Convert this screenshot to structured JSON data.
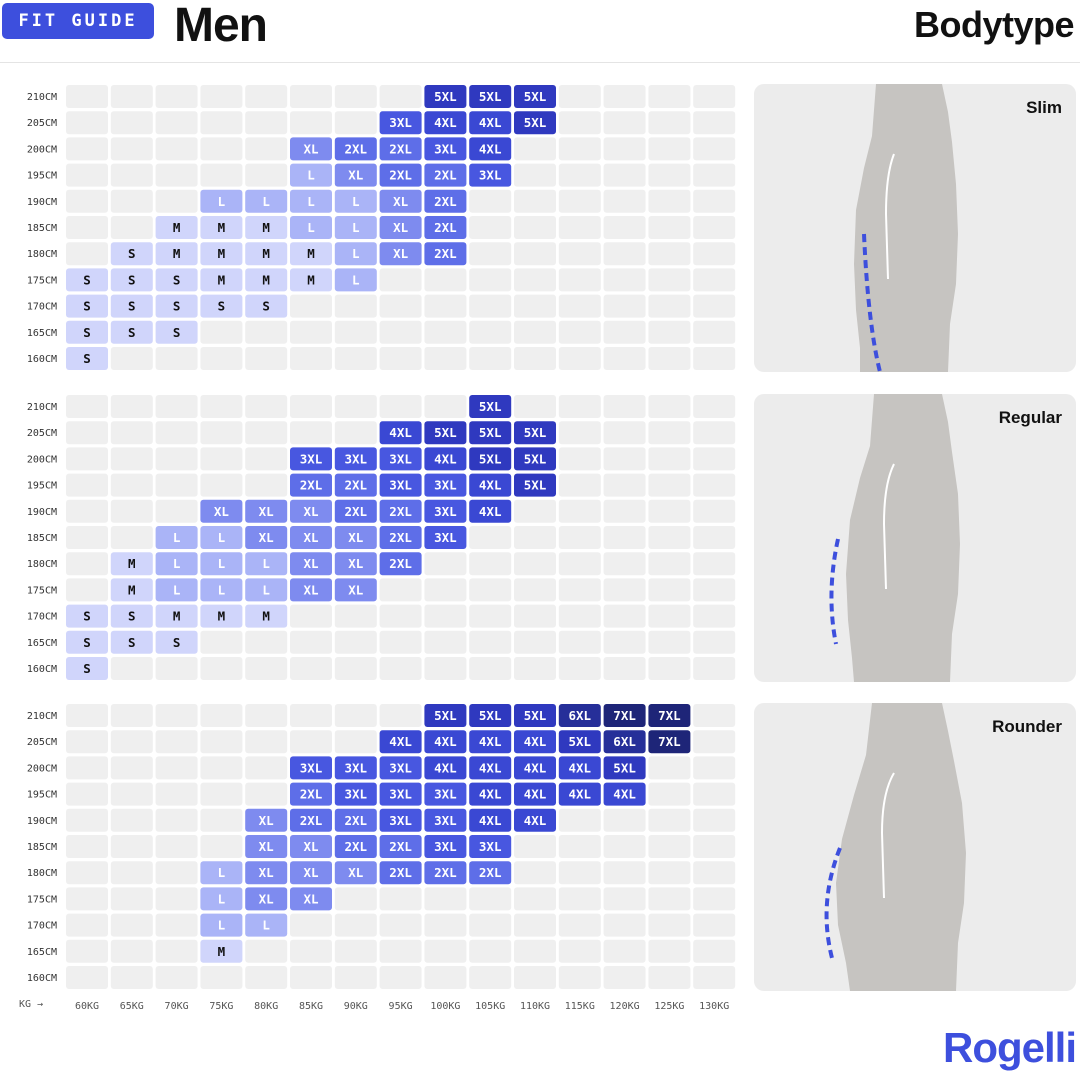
{
  "header": {
    "badge": "FIT GUIDE",
    "title": "Men",
    "bodytype_title": "Bodytype"
  },
  "brand": "Rogelli",
  "colors": {
    "accent": "#3d4fdd",
    "cell_empty": "#efefef",
    "body_panel": "#ececec",
    "figure": "#c6c4c1",
    "S": "#d0d5fb",
    "M": "#d0d5fb",
    "L": "#aab4f7",
    "XL": "#7e8bef",
    "2XL": "#5e6ee8",
    "3XL": "#4857e0",
    "4XL": "#3a48d3",
    "5XL": "#2f39bf",
    "6XL": "#262f99",
    "7XL": "#1e2578"
  },
  "chart_data": {
    "type": "heatmap",
    "x_caption": "KG →",
    "x": [
      "60KG",
      "65KG",
      "70KG",
      "75KG",
      "80KG",
      "85KG",
      "90KG",
      "95KG",
      "100KG",
      "105KG",
      "110KG",
      "115KG",
      "120KG",
      "125KG",
      "130KG"
    ],
    "y": [
      "210CM",
      "205CM",
      "200CM",
      "195CM",
      "190CM",
      "185CM",
      "180CM",
      "175CM",
      "170CM",
      "165CM",
      "160CM"
    ],
    "panels": [
      {
        "bodytype": "Slim",
        "rows": [
          [
            "",
            "",
            "",
            "",
            "",
            "",
            "",
            "",
            "5XL",
            "5XL",
            "5XL",
            "",
            "",
            "",
            ""
          ],
          [
            "",
            "",
            "",
            "",
            "",
            "",
            "",
            "3XL",
            "4XL",
            "4XL",
            "5XL",
            "",
            "",
            "",
            ""
          ],
          [
            "",
            "",
            "",
            "",
            "",
            "XL",
            "2XL",
            "2XL",
            "3XL",
            "4XL",
            "",
            "",
            "",
            "",
            ""
          ],
          [
            "",
            "",
            "",
            "",
            "",
            "L",
            "XL",
            "2XL",
            "2XL",
            "3XL",
            "",
            "",
            "",
            "",
            ""
          ],
          [
            "",
            "",
            "",
            "L",
            "L",
            "L",
            "L",
            "XL",
            "2XL",
            "",
            "",
            "",
            "",
            "",
            ""
          ],
          [
            "",
            "",
            "M",
            "M",
            "M",
            "L",
            "L",
            "XL",
            "2XL",
            "",
            "",
            "",
            "",
            "",
            ""
          ],
          [
            "",
            "S",
            "M",
            "M",
            "M",
            "M",
            "L",
            "XL",
            "2XL",
            "",
            "",
            "",
            "",
            "",
            ""
          ],
          [
            "S",
            "S",
            "S",
            "M",
            "M",
            "M",
            "L",
            "",
            "",
            "",
            "",
            "",
            "",
            "",
            ""
          ],
          [
            "S",
            "S",
            "S",
            "S",
            "S",
            "",
            "",
            "",
            "",
            "",
            "",
            "",
            "",
            "",
            ""
          ],
          [
            "S",
            "S",
            "S",
            "",
            "",
            "",
            "",
            "",
            "",
            "",
            "",
            "",
            "",
            "",
            ""
          ],
          [
            "S",
            "",
            "",
            "",
            "",
            "",
            "",
            "",
            "",
            "",
            "",
            "",
            "",
            "",
            ""
          ]
        ]
      },
      {
        "bodytype": "Regular",
        "rows": [
          [
            "",
            "",
            "",
            "",
            "",
            "",
            "",
            "",
            "",
            "5XL",
            "",
            "",
            "",
            "",
            ""
          ],
          [
            "",
            "",
            "",
            "",
            "",
            "",
            "",
            "4XL",
            "5XL",
            "5XL",
            "5XL",
            "",
            "",
            "",
            ""
          ],
          [
            "",
            "",
            "",
            "",
            "",
            "3XL",
            "3XL",
            "3XL",
            "4XL",
            "5XL",
            "5XL",
            "",
            "",
            "",
            ""
          ],
          [
            "",
            "",
            "",
            "",
            "",
            "2XL",
            "2XL",
            "3XL",
            "3XL",
            "4XL",
            "5XL",
            "",
            "",
            "",
            ""
          ],
          [
            "",
            "",
            "",
            "XL",
            "XL",
            "XL",
            "2XL",
            "2XL",
            "3XL",
            "4XL",
            "",
            "",
            "",
            "",
            ""
          ],
          [
            "",
            "",
            "L",
            "L",
            "XL",
            "XL",
            "XL",
            "2XL",
            "3XL",
            "",
            "",
            "",
            "",
            "",
            ""
          ],
          [
            "",
            "M",
            "L",
            "L",
            "L",
            "XL",
            "XL",
            "2XL",
            "",
            "",
            "",
            "",
            "",
            "",
            ""
          ],
          [
            "",
            "M",
            "L",
            "L",
            "L",
            "XL",
            "XL",
            "",
            "",
            "",
            "",
            "",
            "",
            "",
            ""
          ],
          [
            "S",
            "S",
            "M",
            "M",
            "M",
            "",
            "",
            "",
            "",
            "",
            "",
            "",
            "",
            "",
            ""
          ],
          [
            "S",
            "S",
            "S",
            "",
            "",
            "",
            "",
            "",
            "",
            "",
            "",
            "",
            "",
            "",
            ""
          ],
          [
            "S",
            "",
            "",
            "",
            "",
            "",
            "",
            "",
            "",
            "",
            "",
            "",
            "",
            "",
            ""
          ]
        ]
      },
      {
        "bodytype": "Rounder",
        "rows": [
          [
            "",
            "",
            "",
            "",
            "",
            "",
            "",
            "",
            "5XL",
            "5XL",
            "5XL",
            "6XL",
            "7XL",
            "7XL",
            ""
          ],
          [
            "",
            "",
            "",
            "",
            "",
            "",
            "",
            "4XL",
            "4XL",
            "4XL",
            "4XL",
            "5XL",
            "6XL",
            "7XL",
            ""
          ],
          [
            "",
            "",
            "",
            "",
            "",
            "3XL",
            "3XL",
            "3XL",
            "4XL",
            "4XL",
            "4XL",
            "4XL",
            "5XL",
            "",
            ""
          ],
          [
            "",
            "",
            "",
            "",
            "",
            "2XL",
            "3XL",
            "3XL",
            "3XL",
            "4XL",
            "4XL",
            "4XL",
            "4XL",
            "",
            ""
          ],
          [
            "",
            "",
            "",
            "",
            "XL",
            "2XL",
            "2XL",
            "3XL",
            "3XL",
            "4XL",
            "4XL",
            "",
            "",
            "",
            ""
          ],
          [
            "",
            "",
            "",
            "",
            "XL",
            "XL",
            "2XL",
            "2XL",
            "3XL",
            "3XL",
            "",
            "",
            "",
            "",
            ""
          ],
          [
            "",
            "",
            "",
            "L",
            "XL",
            "XL",
            "XL",
            "2XL",
            "2XL",
            "2XL",
            "",
            "",
            "",
            "",
            ""
          ],
          [
            "",
            "",
            "",
            "L",
            "XL",
            "XL",
            "",
            "",
            "",
            "",
            "",
            "",
            "",
            "",
            ""
          ],
          [
            "",
            "",
            "",
            "L",
            "L",
            "",
            "",
            "",
            "",
            "",
            "",
            "",
            "",
            "",
            ""
          ],
          [
            "",
            "",
            "",
            "M",
            "",
            "",
            "",
            "",
            "",
            "",
            "",
            "",
            "",
            "",
            ""
          ],
          [
            "",
            "",
            "",
            "",
            "",
            "",
            "",
            "",
            "",
            "",
            "",
            "",
            "",
            "",
            ""
          ]
        ]
      }
    ]
  }
}
